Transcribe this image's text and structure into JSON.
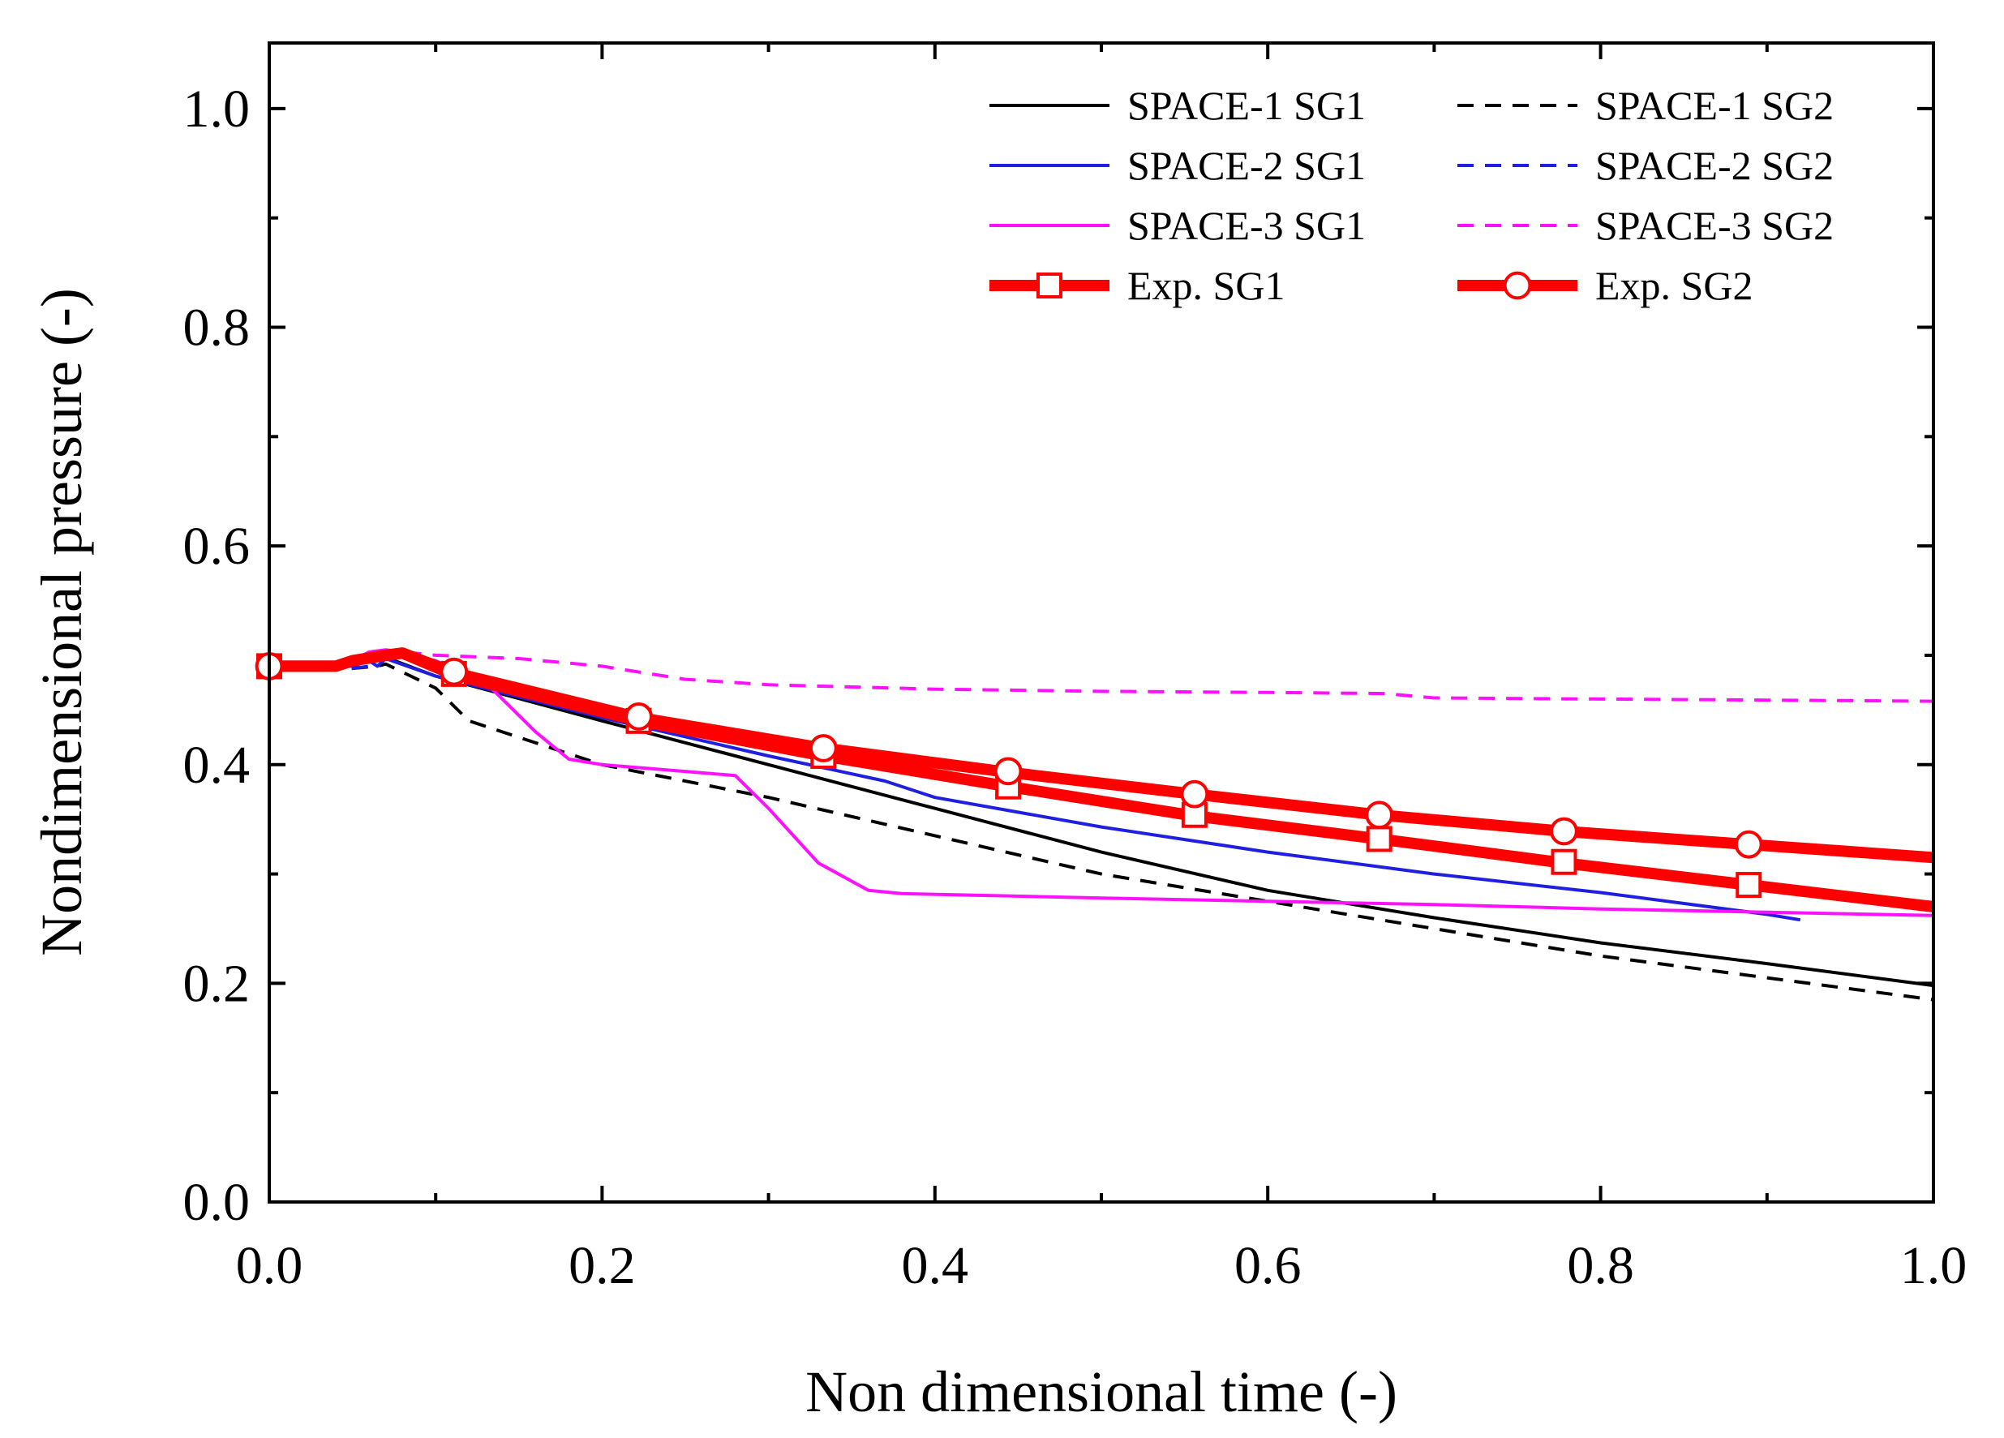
{
  "chart_data": {
    "type": "line",
    "xlabel": "Non dimensional time (-)",
    "ylabel": "Nondimensional pressure (-)",
    "xlim": [
      0.0,
      1.0
    ],
    "ylim": [
      0.0,
      1.06
    ],
    "x_ticks": [
      "0.0",
      "0.2",
      "0.4",
      "0.6",
      "0.8",
      "1.0"
    ],
    "y_ticks": [
      "0.0",
      "0.2",
      "0.4",
      "0.6",
      "0.8",
      "1.0"
    ],
    "legend_position": "top-right",
    "series": [
      {
        "name": "SPACE-1 SG1",
        "color": "#000000",
        "dash": "solid",
        "marker": "none",
        "x": [
          0.0,
          0.04,
          0.05,
          0.06,
          0.065,
          0.07,
          0.1,
          0.2,
          0.3,
          0.4,
          0.5,
          0.6,
          0.7,
          0.8,
          0.9,
          1.0
        ],
        "y": [
          0.49,
          0.49,
          0.492,
          0.498,
          0.5,
          0.498,
          0.481,
          0.44,
          0.4,
          0.36,
          0.32,
          0.285,
          0.26,
          0.237,
          0.218,
          0.198
        ]
      },
      {
        "name": "SPACE-1 SG2",
        "color": "#000000",
        "dash": "dashed",
        "marker": "none",
        "x": [
          0.0,
          0.04,
          0.05,
          0.065,
          0.07,
          0.1,
          0.12,
          0.2,
          0.3,
          0.4,
          0.5,
          0.6,
          0.7,
          0.8,
          0.9,
          1.0
        ],
        "y": [
          0.49,
          0.49,
          0.488,
          0.49,
          0.492,
          0.47,
          0.44,
          0.4,
          0.37,
          0.335,
          0.3,
          0.275,
          0.25,
          0.225,
          0.205,
          0.185
        ]
      },
      {
        "name": "SPACE-2 SG1",
        "color": "#1f1fe0",
        "dash": "solid",
        "marker": "none",
        "x": [
          0.0,
          0.04,
          0.05,
          0.06,
          0.065,
          0.07,
          0.1,
          0.2,
          0.3,
          0.37,
          0.4,
          0.5,
          0.6,
          0.7,
          0.8,
          0.9,
          0.92
        ],
        "y": [
          0.49,
          0.49,
          0.49,
          0.495,
          0.49,
          0.497,
          0.481,
          0.443,
          0.408,
          0.385,
          0.37,
          0.343,
          0.32,
          0.3,
          0.283,
          0.263,
          0.258
        ]
      },
      {
        "name": "SPACE-2 SG2",
        "color": "#1f1fe0",
        "dash": "dashed",
        "marker": "none",
        "x": [
          0.0,
          0.04,
          0.05,
          0.06,
          0.065
        ],
        "y": [
          0.49,
          0.49,
          0.488,
          0.49,
          0.492
        ]
      },
      {
        "name": "SPACE-3 SG1",
        "color": "#ff10ff",
        "dash": "solid",
        "marker": "none",
        "x": [
          0.0,
          0.04,
          0.05,
          0.06,
          0.07,
          0.08,
          0.1,
          0.13,
          0.16,
          0.18,
          0.2,
          0.24,
          0.28,
          0.3,
          0.33,
          0.36,
          0.38,
          0.5,
          0.6,
          0.7,
          0.8,
          0.9,
          1.0
        ],
        "y": [
          0.49,
          0.49,
          0.495,
          0.503,
          0.505,
          0.503,
          0.495,
          0.475,
          0.43,
          0.405,
          0.4,
          0.395,
          0.39,
          0.36,
          0.31,
          0.285,
          0.282,
          0.278,
          0.275,
          0.272,
          0.268,
          0.265,
          0.262
        ]
      },
      {
        "name": "SPACE-3 SG2",
        "color": "#ff10ff",
        "dash": "dashed",
        "marker": "none",
        "x": [
          0.0,
          0.04,
          0.06,
          0.08,
          0.1,
          0.15,
          0.2,
          0.25,
          0.3,
          0.4,
          0.5,
          0.6,
          0.67,
          0.7,
          0.8,
          0.9,
          1.0
        ],
        "y": [
          0.49,
          0.49,
          0.5,
          0.503,
          0.5,
          0.497,
          0.49,
          0.478,
          0.473,
          0.469,
          0.467,
          0.466,
          0.465,
          0.461,
          0.46,
          0.459,
          0.458
        ]
      },
      {
        "name": "Exp. SG1",
        "color": "#ff0000",
        "dash": "solid",
        "marker": "square",
        "x": [
          0.0,
          0.04,
          0.05,
          0.07,
          0.08,
          0.111,
          0.222,
          0.333,
          0.444,
          0.556,
          0.667,
          0.778,
          0.889,
          1.0
        ],
        "y": [
          0.49,
          0.49,
          0.495,
          0.5,
          0.502,
          0.482,
          0.44,
          0.408,
          0.38,
          0.353,
          0.332,
          0.31,
          0.29,
          0.27
        ],
        "marker_x": [
          0.0,
          0.111,
          0.222,
          0.333,
          0.444,
          0.556,
          0.667,
          0.778,
          0.889
        ],
        "marker_y": [
          0.49,
          0.483,
          0.44,
          0.408,
          0.38,
          0.354,
          0.332,
          0.311,
          0.29
        ]
      },
      {
        "name": "Exp. SG2",
        "color": "#ff0000",
        "dash": "solid",
        "marker": "circle",
        "x": [
          0.0,
          0.04,
          0.05,
          0.07,
          0.08,
          0.111,
          0.222,
          0.333,
          0.444,
          0.556,
          0.667,
          0.778,
          0.889,
          1.0
        ],
        "y": [
          0.49,
          0.49,
          0.495,
          0.5,
          0.502,
          0.484,
          0.443,
          0.415,
          0.393,
          0.373,
          0.354,
          0.339,
          0.327,
          0.315
        ],
        "marker_x": [
          0.0,
          0.111,
          0.222,
          0.333,
          0.444,
          0.556,
          0.667,
          0.778,
          0.889
        ],
        "marker_y": [
          0.49,
          0.485,
          0.444,
          0.415,
          0.394,
          0.373,
          0.354,
          0.339,
          0.327
        ]
      }
    ]
  }
}
